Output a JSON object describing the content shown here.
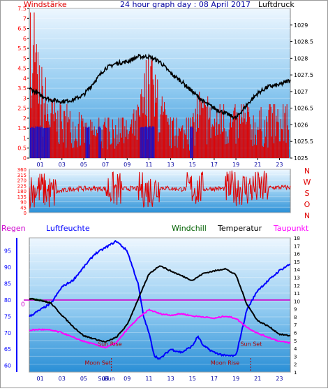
{
  "title": "24 hour graph day : 08 April 2017",
  "colors": {
    "wind": "#e00000",
    "pressure": "#000000",
    "gust_blue": "#1010d0",
    "humidity": "#0000ff",
    "windchill": "#006000",
    "temperature": "#000000",
    "dewpoint": "#ff00ff",
    "rain_line": "#cc00cc",
    "label_red": "#ff0000",
    "sun_moon_label": "#b00000",
    "dir_labels": "#e00000"
  },
  "panel_top": {
    "left_label": "Windstärke",
    "right_label": "Luftdruck"
  },
  "panel_mid": {
    "direction_labels": [
      "N",
      "W",
      "S",
      "O",
      "N"
    ]
  },
  "panel_bottom": {
    "labels": {
      "rain": "Regen",
      "humidity": "Luftfeuchte",
      "windchill": "Windchill",
      "temperature": "Temperatur",
      "dewpoint": "Taupunkt"
    },
    "rain_tick": "0",
    "annotations": [
      {
        "text": "Sun Rise",
        "hour": 7.4,
        "value": 66.0,
        "color": "#b00000"
      },
      {
        "text": "Moon Set",
        "hour": 6.3,
        "value": 60.2,
        "color": "#b00000"
      },
      {
        "text": "Moon Rise",
        "hour": 18.0,
        "value": 60.2,
        "color": "#b00000"
      },
      {
        "text": "Sun Set",
        "hour": 20.4,
        "value": 66.0,
        "color": "#b00000"
      }
    ],
    "sun_time_labels": [
      "Sun",
      "Sun"
    ]
  },
  "chart_data": [
    {
      "type": "bar",
      "name": "wind",
      "y_unit_label": "Windstärke",
      "ylim": [
        0,
        7.5
      ],
      "y_ticks": [
        "0",
        "0.5",
        "1",
        "1.5",
        "2",
        "2.5",
        "3",
        "3.5",
        "4",
        "4.5",
        "5",
        "5.5",
        "6",
        "6.5",
        "7",
        "7.5"
      ],
      "x_ticks": [
        "01",
        "03",
        "05",
        "07",
        "09",
        "11",
        "13",
        "15",
        "17",
        "19",
        "21",
        "23"
      ],
      "xlim_hours": [
        0,
        24
      ],
      "series": [
        {
          "name": "pressure",
          "type": "line",
          "ylim": [
            1025,
            1029.5
          ],
          "y_ticks": [
            "1025",
            "1025.5",
            "1026",
            "1026.5",
            "1027",
            "1027.5",
            "1028",
            "1028.5",
            "1029"
          ],
          "points": [
            [
              0,
              1027.1
            ],
            [
              1,
              1026.9
            ],
            [
              2,
              1026.75
            ],
            [
              3,
              1026.7
            ],
            [
              4,
              1026.75
            ],
            [
              5,
              1026.9
            ],
            [
              6,
              1027.3
            ],
            [
              7,
              1027.7
            ],
            [
              8,
              1027.85
            ],
            [
              9,
              1027.9
            ],
            [
              10,
              1028.05
            ],
            [
              11,
              1028.05
            ],
            [
              12,
              1027.9
            ],
            [
              13,
              1027.55
            ],
            [
              14,
              1027.3
            ],
            [
              15,
              1027.0
            ],
            [
              16,
              1026.7
            ],
            [
              17,
              1026.5
            ],
            [
              18,
              1026.35
            ],
            [
              19,
              1026.2
            ],
            [
              20,
              1026.6
            ],
            [
              21,
              1026.95
            ],
            [
              22,
              1027.15
            ],
            [
              23,
              1027.2
            ],
            [
              24,
              1027.35
            ]
          ]
        }
      ],
      "wind_profile": [
        [
          0,
          5.5
        ],
        [
          0.5,
          5.0
        ],
        [
          1,
          4.0
        ],
        [
          1.5,
          3.0
        ],
        [
          2,
          2.5
        ],
        [
          3,
          2.0
        ],
        [
          4,
          2.0
        ],
        [
          5,
          1.5
        ],
        [
          6,
          1.5
        ],
        [
          7,
          1.5
        ],
        [
          8,
          1.5
        ],
        [
          9,
          1.5
        ],
        [
          10,
          2.0
        ],
        [
          10.5,
          3.5
        ],
        [
          11,
          3.8
        ],
        [
          11.5,
          3.5
        ],
        [
          12,
          2.5
        ],
        [
          13,
          1.5
        ],
        [
          14,
          1.5
        ],
        [
          15,
          1.5
        ],
        [
          15.5,
          3.0
        ],
        [
          16,
          2.5
        ],
        [
          17,
          2.0
        ],
        [
          18,
          2.0
        ],
        [
          19,
          2.0
        ],
        [
          20,
          2.0
        ],
        [
          21,
          2.0
        ],
        [
          22,
          2.0
        ],
        [
          23,
          2.0
        ],
        [
          24,
          2.0
        ]
      ]
    },
    {
      "type": "scatter",
      "name": "wind_direction",
      "ylim": [
        0,
        360
      ],
      "y_ticks": [
        "0",
        "45",
        "90",
        "135",
        "180",
        "225",
        "270",
        "315",
        "360"
      ],
      "x_ticks": [
        "01",
        "03",
        "05",
        "07",
        "09",
        "11",
        "13",
        "15",
        "17",
        "19",
        "21",
        "23"
      ],
      "xlim_hours": [
        0,
        24
      ],
      "points": [
        [
          0,
          180
        ],
        [
          1,
          200
        ],
        [
          2,
          160
        ],
        [
          3,
          180
        ],
        [
          4,
          200
        ],
        [
          5,
          200
        ],
        [
          6,
          200
        ],
        [
          7,
          200
        ],
        [
          8,
          190
        ],
        [
          9,
          200
        ],
        [
          10,
          200
        ],
        [
          11,
          180
        ],
        [
          12,
          210
        ],
        [
          13,
          200
        ],
        [
          14,
          195
        ],
        [
          15,
          200
        ],
        [
          16,
          195
        ],
        [
          17,
          200
        ],
        [
          18,
          200
        ],
        [
          19,
          205
        ],
        [
          20,
          200
        ],
        [
          21,
          200
        ],
        [
          22,
          205
        ],
        [
          23,
          210
        ],
        [
          24,
          210
        ]
      ]
    },
    {
      "type": "line",
      "name": "climate",
      "xlim_hours": [
        0,
        24
      ],
      "x_ticks": [
        "01",
        "03",
        "05",
        "07",
        "09",
        "11",
        "13",
        "15",
        "17",
        "19",
        "21",
        "23"
      ],
      "left_axis": {
        "ylim": [
          58,
          99
        ],
        "ticks": [
          "60",
          "65",
          "70",
          "75",
          "80",
          "85",
          "90",
          "95"
        ]
      },
      "right_axis": {
        "ylim": [
          1,
          18
        ],
        "ticks": [
          "1",
          "2",
          "3",
          "4",
          "5",
          "6",
          "7",
          "8",
          "9",
          "10",
          "11",
          "12",
          "13",
          "14",
          "15",
          "16",
          "17",
          "18"
        ]
      },
      "series": [
        {
          "name": "humidity",
          "axis": "left",
          "points": [
            [
              0,
              75
            ],
            [
              1,
              77
            ],
            [
              2,
              79
            ],
            [
              3,
              84
            ],
            [
              4,
              86
            ],
            [
              5,
              90
            ],
            [
              6,
              94
            ],
            [
              7,
              96
            ],
            [
              8,
              98
            ],
            [
              9,
              95
            ],
            [
              10,
              85
            ],
            [
              10.5,
              75
            ],
            [
              11,
              70
            ],
            [
              11.5,
              63
            ],
            [
              12,
              62
            ],
            [
              13,
              65
            ],
            [
              14,
              64
            ],
            [
              15,
              66
            ],
            [
              15.5,
              69
            ],
            [
              16,
              66
            ],
            [
              17,
              64
            ],
            [
              18,
              63
            ],
            [
              19,
              63
            ],
            [
              19.5,
              70
            ],
            [
              20,
              77
            ],
            [
              21,
              83
            ],
            [
              22,
              86
            ],
            [
              23,
              89
            ],
            [
              24,
              91
            ]
          ]
        },
        {
          "name": "windchill",
          "axis": "right",
          "points": [
            [
              0,
              10.3
            ],
            [
              1,
              10.1
            ],
            [
              2,
              9.8
            ]
          ]
        },
        {
          "name": "temperature",
          "axis": "right",
          "points": [
            [
              0,
              10.3
            ],
            [
              1,
              10.1
            ],
            [
              2,
              9.7
            ],
            [
              3,
              8.2
            ],
            [
              4,
              6.8
            ],
            [
              5,
              5.6
            ],
            [
              6,
              5.2
            ],
            [
              7,
              4.8
            ],
            [
              8,
              5.4
            ],
            [
              9,
              7.0
            ],
            [
              10,
              10.2
            ],
            [
              11,
              13.4
            ],
            [
              12,
              14.5
            ],
            [
              13,
              13.8
            ],
            [
              14,
              13.2
            ],
            [
              15,
              12.6
            ],
            [
              16,
              13.5
            ],
            [
              17,
              13.8
            ],
            [
              18,
              14.1
            ],
            [
              19,
              13.3
            ],
            [
              20,
              9.6
            ],
            [
              21,
              7.5
            ],
            [
              22,
              6.8
            ],
            [
              23,
              5.8
            ],
            [
              24,
              5.6
            ]
          ]
        },
        {
          "name": "dewpoint",
          "axis": "right",
          "points": [
            [
              0,
              6.3
            ],
            [
              1,
              6.4
            ],
            [
              2,
              6.3
            ],
            [
              3,
              6.0
            ],
            [
              4,
              5.4
            ],
            [
              5,
              4.9
            ],
            [
              6,
              4.5
            ],
            [
              7,
              4.1
            ],
            [
              8,
              4.7
            ],
            [
              9,
              6.4
            ],
            [
              10,
              7.8
            ],
            [
              11,
              8.9
            ],
            [
              12,
              8.4
            ],
            [
              13,
              8.2
            ],
            [
              14,
              8.4
            ],
            [
              15,
              8.1
            ],
            [
              16,
              8.0
            ],
            [
              17,
              7.8
            ],
            [
              18,
              8.1
            ],
            [
              19,
              7.8
            ],
            [
              20,
              6.7
            ],
            [
              21,
              5.9
            ],
            [
              22,
              5.4
            ],
            [
              23,
              4.9
            ],
            [
              24,
              4.7
            ]
          ]
        },
        {
          "name": "rain",
          "axis": "left",
          "points": [
            [
              0,
              80
            ],
            [
              24,
              80
            ]
          ]
        }
      ]
    }
  ]
}
